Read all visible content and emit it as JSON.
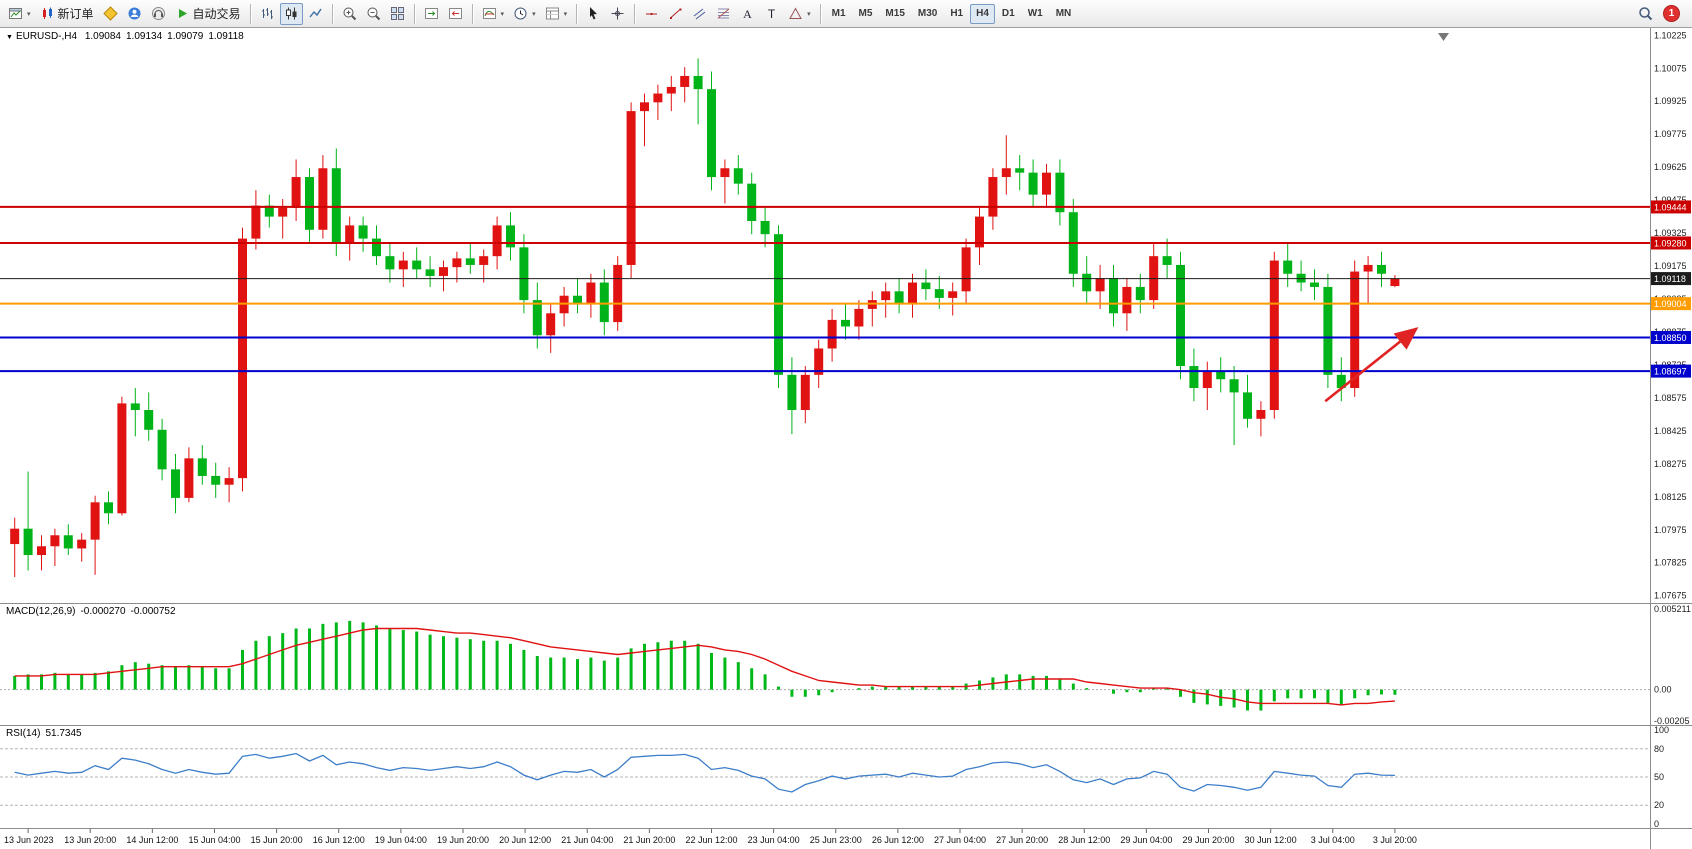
{
  "toolbar": {
    "groups": [
      {
        "buttons": [
          {
            "name": "new-chart-button",
            "icon": "chart-window",
            "dropdown": true
          },
          {
            "name": "new-order-button",
            "icon": "new-order",
            "label": "新订单"
          },
          {
            "name": "metaeditor-button",
            "icon": "editor"
          },
          {
            "name": "community-button",
            "icon": "community"
          },
          {
            "name": "support-button",
            "icon": "support"
          },
          {
            "name": "auto-trading-button",
            "icon": "autotrade",
            "label": "自动交易"
          }
        ]
      },
      {
        "buttons": [
          {
            "name": "bar-chart-button",
            "icon": "chart-bars"
          },
          {
            "name": "candlestick-chart-button",
            "icon": "chart-candles",
            "active": true
          },
          {
            "name": "line-chart-button",
            "icon": "chart-line"
          }
        ]
      },
      {
        "buttons": [
          {
            "name": "zoom-in-button",
            "icon": "zoom-in"
          },
          {
            "name": "zoom-out-button",
            "icon": "zoom-out"
          },
          {
            "name": "tile-windows-button",
            "icon": "tile-windows"
          }
        ]
      },
      {
        "buttons": [
          {
            "name": "auto-scroll-button",
            "icon": "auto-scroll"
          },
          {
            "name": "chart-shift-button",
            "icon": "chart-shift"
          }
        ]
      },
      {
        "buttons": [
          {
            "name": "indicators-button",
            "icon": "indicators",
            "dropdown": true
          },
          {
            "name": "periods-button",
            "icon": "clock",
            "dropdown": true
          },
          {
            "name": "templates-button",
            "icon": "template",
            "dropdown": true
          }
        ]
      },
      {
        "buttons": [
          {
            "name": "cursor-button",
            "icon": "cursor"
          },
          {
            "name": "crosshair-button",
            "icon": "crosshair"
          }
        ]
      },
      {
        "buttons": [
          {
            "name": "horizontal-line-button",
            "icon": "hline"
          },
          {
            "name": "trendline-button",
            "icon": "trendline"
          },
          {
            "name": "channel-button",
            "icon": "channel"
          },
          {
            "name": "fibonacci-button",
            "icon": "fibonacci"
          },
          {
            "name": "text-button",
            "icon": "text-a"
          },
          {
            "name": "label-button",
            "icon": "label-t"
          },
          {
            "name": "shapes-button",
            "icon": "shapes",
            "dropdown": true
          }
        ]
      }
    ],
    "timeframes": [
      "M1",
      "M5",
      "M15",
      "M30",
      "H1",
      "H4",
      "D1",
      "W1",
      "MN"
    ],
    "active_timeframe": "H4",
    "notification_count": "1"
  },
  "chart": {
    "symbol_period": "EURUSD-,H4",
    "open": "1.09084",
    "high": "1.09134",
    "low": "1.09079",
    "close": "1.09118"
  },
  "indicators": {
    "macd": {
      "name": "MACD(12,26,9)",
      "value1": "-0.000270",
      "value2": "-0.000752"
    },
    "rsi": {
      "name": "RSI(14)",
      "value": "51.7345"
    }
  },
  "chart_data": {
    "type": "candlestick",
    "symbol": "EURUSD-",
    "timeframe": "H4",
    "up_color": "#e01212",
    "down_color": "#00b318",
    "ylim": [
      1.0766,
      1.1024
    ],
    "price_ticks": [
      "1.10225",
      "1.10075",
      "1.09925",
      "1.09775",
      "1.09625",
      "1.09475",
      "1.09325",
      "1.09175",
      "1.09025",
      "1.08875",
      "1.08725",
      "1.08575",
      "1.08425",
      "1.08275",
      "1.08125",
      "1.07975",
      "1.07825",
      "1.07675"
    ],
    "levels": [
      {
        "price": 1.09444,
        "color": "#cc0000",
        "label": "1.09444",
        "width": 2
      },
      {
        "price": 1.0928,
        "color": "#cc0000",
        "label": "1.09280",
        "width": 2
      },
      {
        "price": 1.09118,
        "color": "#1c1c1c",
        "label": "1.09118",
        "width": 1
      },
      {
        "price": 1.09004,
        "color": "#ff9c00",
        "label": "1.09004",
        "width": 2
      },
      {
        "price": 1.0885,
        "color": "#0000cc",
        "label": "1.08850",
        "width": 2
      },
      {
        "price": 1.08697,
        "color": "#0000cc",
        "label": "1.08697",
        "width": 2
      }
    ],
    "annotation": {
      "type": "up-arrow",
      "color": "#e02424",
      "from_index": 97.8,
      "from_price": 1.0856,
      "to_index": 104.6,
      "to_price": 1.0889
    },
    "time_labels": [
      "13 Jun 2023",
      "13 Jun 20:00",
      "14 Jun 12:00",
      "15 Jun 04:00",
      "15 Jun 20:00",
      "16 Jun 12:00",
      "19 Jun 04:00",
      "19 Jun 20:00",
      "20 Jun 12:00",
      "21 Jun 04:00",
      "21 Jun 20:00",
      "22 Jun 12:00",
      "23 Jun 04:00",
      "25 Jun 23:00",
      "26 Jun 12:00",
      "27 Jun 04:00",
      "27 Jun 20:00",
      "28 Jun 12:00",
      "29 Jun 04:00",
      "29 Jun 20:00",
      "30 Jun 12:00",
      "3 Jul 04:00",
      "3 Jul 20:00"
    ],
    "candles": [
      [
        1.0791,
        1.0803,
        1.0776,
        1.0798
      ],
      [
        1.0798,
        1.0824,
        1.0779,
        1.0786
      ],
      [
        1.0786,
        1.0795,
        1.0779,
        1.079
      ],
      [
        1.079,
        1.0798,
        1.0781,
        1.0795
      ],
      [
        1.0795,
        1.08,
        1.0786,
        1.0789
      ],
      [
        1.0789,
        1.0796,
        1.0783,
        1.0793
      ],
      [
        1.0793,
        1.0813,
        1.0777,
        1.081
      ],
      [
        1.081,
        1.0815,
        1.08,
        1.0805
      ],
      [
        1.0805,
        1.0858,
        1.0804,
        1.0855
      ],
      [
        1.0855,
        1.0862,
        1.084,
        1.0852
      ],
      [
        1.0852,
        1.086,
        1.0838,
        1.0843
      ],
      [
        1.0843,
        1.0848,
        1.082,
        1.0825
      ],
      [
        1.0825,
        1.0832,
        1.0805,
        1.0812
      ],
      [
        1.0812,
        1.0835,
        1.081,
        1.083
      ],
      [
        1.083,
        1.0836,
        1.0818,
        1.0822
      ],
      [
        1.0822,
        1.0828,
        1.0812,
        1.0818
      ],
      [
        1.0818,
        1.0826,
        1.081,
        1.0821
      ],
      [
        1.0821,
        1.0935,
        1.0815,
        1.093
      ],
      [
        1.093,
        1.0952,
        1.0925,
        1.0945
      ],
      [
        1.0945,
        1.095,
        1.0935,
        1.094
      ],
      [
        1.094,
        1.0948,
        1.093,
        1.0944
      ],
      [
        1.0944,
        1.0966,
        1.0938,
        1.0958
      ],
      [
        1.0958,
        1.0962,
        1.0928,
        1.0934
      ],
      [
        1.0934,
        1.0968,
        1.093,
        1.0962
      ],
      [
        1.0962,
        1.0971,
        1.0922,
        1.0928
      ],
      [
        1.0928,
        1.094,
        1.092,
        1.0936
      ],
      [
        1.0936,
        1.094,
        1.0924,
        1.093
      ],
      [
        1.093,
        1.0936,
        1.0918,
        1.0922
      ],
      [
        1.0922,
        1.0928,
        1.091,
        1.0916
      ],
      [
        1.0916,
        1.0924,
        1.0908,
        1.092
      ],
      [
        1.092,
        1.0926,
        1.0912,
        1.0916
      ],
      [
        1.0916,
        1.0922,
        1.0908,
        1.0913
      ],
      [
        1.0913,
        1.092,
        1.0906,
        1.0917
      ],
      [
        1.0917,
        1.0924,
        1.091,
        1.0921
      ],
      [
        1.0921,
        1.0928,
        1.0914,
        1.0918
      ],
      [
        1.0918,
        1.0925,
        1.091,
        1.0922
      ],
      [
        1.0922,
        1.094,
        1.0916,
        1.0936
      ],
      [
        1.0936,
        1.0942,
        1.092,
        1.0926
      ],
      [
        1.0926,
        1.0932,
        1.0896,
        1.0902
      ],
      [
        1.0902,
        1.091,
        1.088,
        1.0886
      ],
      [
        1.0886,
        1.09,
        1.0878,
        1.0896
      ],
      [
        1.0896,
        1.0908,
        1.089,
        1.0904
      ],
      [
        1.0904,
        1.0912,
        1.0896,
        1.09
      ],
      [
        1.09,
        1.0914,
        1.0894,
        1.091
      ],
      [
        1.091,
        1.0916,
        1.0886,
        1.0892
      ],
      [
        1.0892,
        1.0922,
        1.0888,
        1.0918
      ],
      [
        1.0918,
        1.0992,
        1.0912,
        1.0988
      ],
      [
        1.0988,
        1.0996,
        1.0972,
        1.0992
      ],
      [
        1.0992,
        1.1,
        1.0984,
        1.0996
      ],
      [
        1.0996,
        1.1004,
        1.0988,
        1.0999
      ],
      [
        1.0999,
        1.1008,
        1.0992,
        1.1004
      ],
      [
        1.1004,
        1.1012,
        1.0982,
        1.0998
      ],
      [
        1.0998,
        1.1006,
        1.0952,
        1.0958
      ],
      [
        1.0958,
        1.0966,
        1.0946,
        1.0962
      ],
      [
        1.0962,
        1.0968,
        1.095,
        1.0955
      ],
      [
        1.0955,
        1.096,
        1.0932,
        1.0938
      ],
      [
        1.0938,
        1.0944,
        1.0926,
        1.0932
      ],
      [
        1.0932,
        1.0936,
        1.0862,
        1.0868
      ],
      [
        1.0868,
        1.0876,
        1.0841,
        1.0852
      ],
      [
        1.0852,
        1.0872,
        1.0846,
        1.0868
      ],
      [
        1.0868,
        1.0884,
        1.0862,
        1.088
      ],
      [
        1.088,
        1.0898,
        1.0874,
        1.0893
      ],
      [
        1.0893,
        1.09,
        1.0884,
        1.089
      ],
      [
        1.089,
        1.0902,
        1.0884,
        1.0898
      ],
      [
        1.0898,
        1.0906,
        1.089,
        1.0902
      ],
      [
        1.0902,
        1.091,
        1.0894,
        1.0906
      ],
      [
        1.0906,
        1.0912,
        1.0896,
        1.09
      ],
      [
        1.09,
        1.0914,
        1.0894,
        1.091
      ],
      [
        1.091,
        1.0916,
        1.0902,
        1.0907
      ],
      [
        1.0907,
        1.0913,
        1.0898,
        1.0903
      ],
      [
        1.0903,
        1.091,
        1.0895,
        1.0906
      ],
      [
        1.0906,
        1.093,
        1.09,
        1.0926
      ],
      [
        1.0926,
        1.0944,
        1.0918,
        1.094
      ],
      [
        1.094,
        1.0962,
        1.0934,
        1.0958
      ],
      [
        1.0958,
        1.0977,
        1.095,
        1.0962
      ],
      [
        1.0962,
        1.0968,
        1.0952,
        1.096
      ],
      [
        1.096,
        1.0966,
        1.0944,
        1.095
      ],
      [
        1.095,
        1.0964,
        1.0944,
        1.096
      ],
      [
        1.096,
        1.0966,
        1.0936,
        1.0942
      ],
      [
        1.0942,
        1.0948,
        1.0908,
        1.0914
      ],
      [
        1.0914,
        1.0922,
        1.09,
        1.0906
      ],
      [
        1.0906,
        1.0918,
        1.0898,
        1.0912
      ],
      [
        1.0912,
        1.0918,
        1.089,
        1.0896
      ],
      [
        1.0896,
        1.0912,
        1.0888,
        1.0908
      ],
      [
        1.0908,
        1.0914,
        1.0896,
        1.0902
      ],
      [
        1.0902,
        1.0928,
        1.0898,
        1.0922
      ],
      [
        1.0922,
        1.093,
        1.0912,
        1.0918
      ],
      [
        1.0918,
        1.0924,
        1.0866,
        1.0872
      ],
      [
        1.0872,
        1.088,
        1.0856,
        1.0862
      ],
      [
        1.0862,
        1.0874,
        1.0852,
        1.087
      ],
      [
        1.087,
        1.0876,
        1.086,
        1.0866
      ],
      [
        1.0866,
        1.0872,
        1.0836,
        1.086
      ],
      [
        1.086,
        1.0868,
        1.0844,
        1.0848
      ],
      [
        1.0848,
        1.0856,
        1.084,
        1.0852
      ],
      [
        1.0852,
        1.0924,
        1.0848,
        1.092
      ],
      [
        1.092,
        1.0928,
        1.0908,
        1.0914
      ],
      [
        1.0914,
        1.092,
        1.0906,
        1.091
      ],
      [
        1.091,
        1.0916,
        1.0902,
        1.0908
      ],
      [
        1.0908,
        1.0914,
        1.0862,
        1.0868
      ],
      [
        1.0868,
        1.0876,
        1.0856,
        1.0862
      ],
      [
        1.0862,
        1.092,
        1.0858,
        1.0915
      ],
      [
        1.0915,
        1.0922,
        1.09,
        1.0918
      ],
      [
        1.0918,
        1.0924,
        1.0908,
        1.0914
      ],
      [
        1.09084,
        1.09134,
        1.09079,
        1.09118
      ]
    ],
    "macd": {
      "name": "MACD(12,26,9)",
      "value1": "-0.000270",
      "value2": "-0.000752",
      "hist_color": "#00b818",
      "signal_color": "#e01212",
      "ylim": [
        -0.00205,
        0.005211
      ],
      "scale_labels": [
        "0.005211",
        "0.00",
        "-0.00205"
      ],
      "hist": [
        0.0009,
        0.001,
        0.001,
        0.0011,
        0.001,
        0.001,
        0.0011,
        0.0012,
        0.0016,
        0.0018,
        0.0017,
        0.0016,
        0.0015,
        0.0016,
        0.0015,
        0.0014,
        0.0014,
        0.0026,
        0.0032,
        0.0035,
        0.0037,
        0.004,
        0.004,
        0.0043,
        0.0044,
        0.0045,
        0.0044,
        0.0042,
        0.004,
        0.0039,
        0.0038,
        0.0036,
        0.0035,
        0.0034,
        0.0033,
        0.0032,
        0.0032,
        0.003,
        0.0026,
        0.0022,
        0.0021,
        0.0021,
        0.002,
        0.0021,
        0.0019,
        0.0021,
        0.0027,
        0.003,
        0.0031,
        0.0032,
        0.0032,
        0.003,
        0.0024,
        0.0021,
        0.0018,
        0.0014,
        0.001,
        0.0002,
        -0.0004,
        -0.0004,
        -0.0003,
        -0.0001,
        0.0,
        0.0001,
        0.0002,
        0.0002,
        0.0002,
        0.0002,
        0.0002,
        0.0002,
        0.0002,
        0.0004,
        0.0006,
        0.0008,
        0.001,
        0.001,
        0.0009,
        0.0009,
        0.0007,
        0.0004,
        0.0001,
        0.0,
        -0.0002,
        -0.0001,
        -0.0001,
        0.0001,
        0.0001,
        -0.0004,
        -0.0008,
        -0.0009,
        -0.001,
        -0.0011,
        -0.0013,
        -0.0013,
        -0.0007,
        -0.0005,
        -0.0005,
        -0.0005,
        -0.0008,
        -0.0009,
        -0.0005,
        -0.0003,
        -0.00025,
        -0.00027
      ],
      "signal": [
        0.0009,
        0.0009,
        0.0009,
        0.001,
        0.001,
        0.001,
        0.001,
        0.0011,
        0.0012,
        0.0013,
        0.0014,
        0.0015,
        0.0015,
        0.0015,
        0.0015,
        0.0015,
        0.0015,
        0.0017,
        0.002,
        0.0023,
        0.0026,
        0.0029,
        0.0031,
        0.0033,
        0.0035,
        0.0037,
        0.0039,
        0.004,
        0.004,
        0.004,
        0.004,
        0.0039,
        0.0038,
        0.0037,
        0.0037,
        0.0036,
        0.0035,
        0.0034,
        0.0032,
        0.003,
        0.0028,
        0.0027,
        0.0026,
        0.0025,
        0.0024,
        0.0023,
        0.0024,
        0.0025,
        0.0026,
        0.0027,
        0.0028,
        0.0029,
        0.0028,
        0.0026,
        0.0025,
        0.0023,
        0.002,
        0.0016,
        0.0012,
        0.0009,
        0.0006,
        0.0005,
        0.0004,
        0.0003,
        0.0003,
        0.0002,
        0.0002,
        0.0002,
        0.0002,
        0.0002,
        0.0002,
        0.0002,
        0.0003,
        0.0004,
        0.0005,
        0.0006,
        0.0007,
        0.0007,
        0.0007,
        0.0007,
        0.0005,
        0.0004,
        0.0003,
        0.0002,
        0.0001,
        0.0001,
        0.0001,
        0.0,
        -0.0002,
        -0.0003,
        -0.0005,
        -0.0006,
        -0.0008,
        -0.0009,
        -0.0009,
        -0.0009,
        -0.0009,
        -0.0009,
        -0.0009,
        -0.001,
        -0.0009,
        -0.0009,
        -0.0008,
        -0.00075
      ]
    },
    "rsi": {
      "name": "RSI(14)",
      "value": "51.7345",
      "color": "#3d7ec9",
      "levels": [
        80,
        50,
        20
      ],
      "scale_labels": [
        "100",
        "80",
        "50",
        "20",
        "0"
      ],
      "values": [
        55,
        52,
        54,
        56,
        54,
        55,
        62,
        58,
        70,
        68,
        64,
        58,
        54,
        58,
        55,
        53,
        54,
        72,
        74,
        70,
        72,
        75,
        67,
        73,
        63,
        66,
        64,
        60,
        57,
        60,
        59,
        57,
        59,
        61,
        59,
        61,
        66,
        61,
        52,
        47,
        52,
        56,
        55,
        58,
        50,
        58,
        71,
        72,
        73,
        73,
        74,
        70,
        58,
        60,
        57,
        51,
        48,
        37,
        34,
        42,
        46,
        51,
        48,
        51,
        52,
        53,
        50,
        54,
        52,
        50,
        51,
        58,
        61,
        65,
        66,
        64,
        60,
        63,
        56,
        47,
        44,
        48,
        42,
        48,
        49,
        56,
        53,
        39,
        35,
        42,
        41,
        39,
        36,
        39,
        56,
        54,
        52,
        51,
        41,
        39,
        53,
        54,
        52,
        51.7
      ]
    }
  }
}
